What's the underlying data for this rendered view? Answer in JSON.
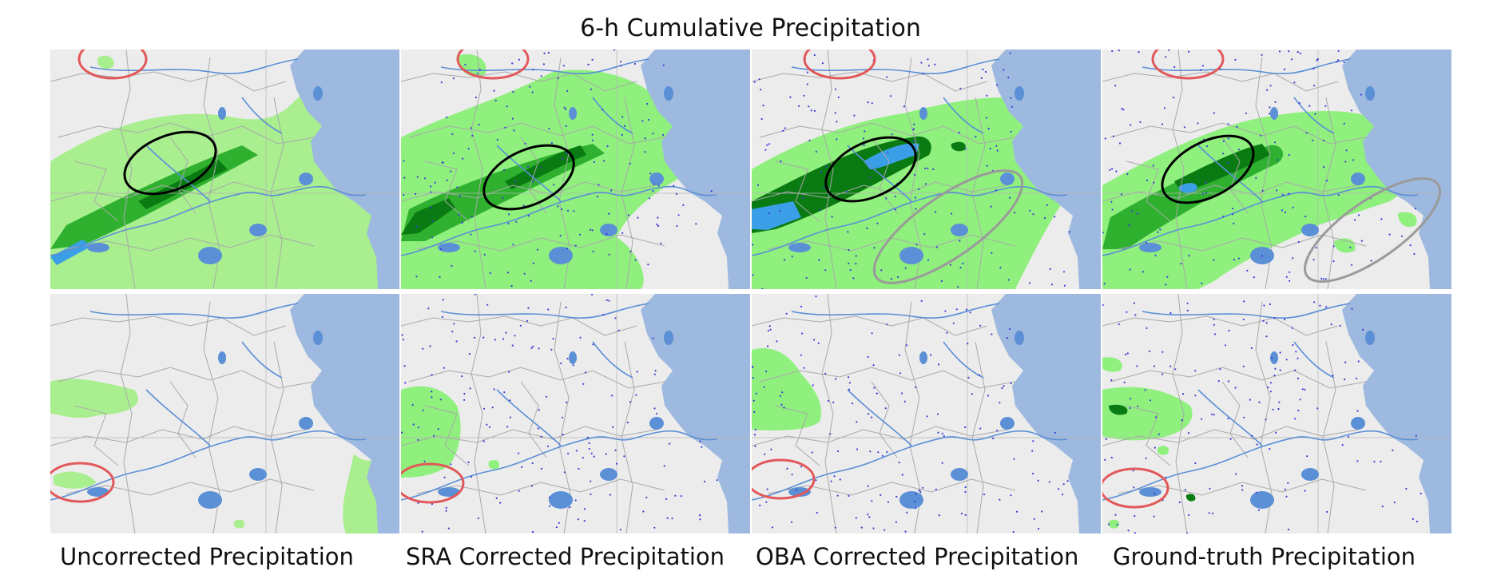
{
  "figure": {
    "title": "6-h Cumulative Precipitation",
    "columns": [
      {
        "label": "Uncorrected Precipitation"
      },
      {
        "label": "SRA Corrected Precipitation"
      },
      {
        "label": "OBA Corrected Precipitation"
      },
      {
        "label": "Ground-truth Precipitation"
      }
    ],
    "panel_rows": 2
  },
  "colors": {
    "land": "#ececec",
    "sea": "#9db9df",
    "border": "#a9a9a9",
    "river": "#5b8fd6",
    "precip_light": "#8ff07d",
    "precip_light_uncorrected": "#a9ef8f",
    "precip_medium": "#2fb12f",
    "precip_heavy": "#0a7a12",
    "precip_very_heavy": "#3a9fe6",
    "station_dot": "#3b3bd6",
    "highlight_red": "#e2585a",
    "highlight_black": "#000000",
    "highlight_gray": "#9a9a9a"
  }
}
